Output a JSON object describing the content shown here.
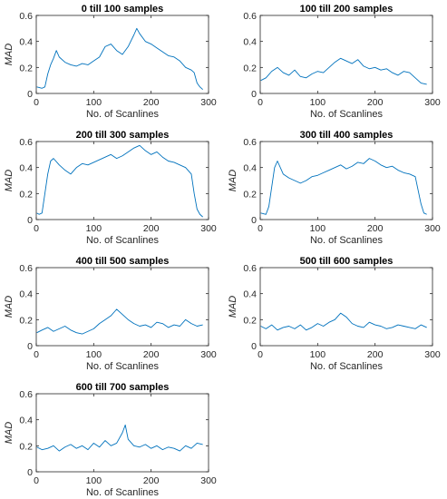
{
  "figure": {
    "background": "#ffffff",
    "line_color": "#0072BD"
  },
  "chart_data": [
    {
      "type": "line",
      "title": "0 till 100 samples",
      "xlabel": "No. of Scanlines",
      "ylabel": "MAD",
      "xlim": [
        0,
        300
      ],
      "ylim": [
        0,
        0.6
      ],
      "xticks": [
        0,
        100,
        200,
        300
      ],
      "yticks": [
        0,
        0.2,
        0.4,
        0.6
      ],
      "series": [
        {
          "x": [
            1,
            10,
            15,
            20,
            25,
            30,
            35,
            40,
            50,
            60,
            70,
            80,
            90,
            100,
            110,
            120,
            130,
            140,
            150,
            160,
            170,
            175,
            180,
            190,
            200,
            210,
            220,
            230,
            240,
            250,
            260,
            270,
            275,
            280,
            285,
            290
          ],
          "y": [
            0.05,
            0.04,
            0.05,
            0.15,
            0.22,
            0.27,
            0.33,
            0.28,
            0.24,
            0.22,
            0.21,
            0.23,
            0.22,
            0.25,
            0.28,
            0.36,
            0.38,
            0.33,
            0.3,
            0.36,
            0.45,
            0.5,
            0.46,
            0.4,
            0.38,
            0.35,
            0.32,
            0.29,
            0.28,
            0.25,
            0.2,
            0.18,
            0.16,
            0.08,
            0.05,
            0.03
          ]
        }
      ]
    },
    {
      "type": "line",
      "title": "100 till 200 samples",
      "xlabel": "No. of Scanlines",
      "ylabel": "",
      "xlim": [
        0,
        300
      ],
      "ylim": [
        0,
        0.6
      ],
      "xticks": [
        0,
        100,
        200,
        300
      ],
      "yticks": [
        0,
        0.2,
        0.4,
        0.6
      ],
      "series": [
        {
          "x": [
            1,
            10,
            20,
            30,
            40,
            50,
            60,
            70,
            80,
            90,
            100,
            110,
            120,
            130,
            140,
            150,
            160,
            170,
            180,
            190,
            200,
            210,
            220,
            230,
            240,
            250,
            260,
            270,
            280,
            290
          ],
          "y": [
            0.1,
            0.12,
            0.17,
            0.2,
            0.16,
            0.14,
            0.18,
            0.13,
            0.12,
            0.15,
            0.17,
            0.16,
            0.2,
            0.24,
            0.27,
            0.25,
            0.23,
            0.26,
            0.21,
            0.19,
            0.2,
            0.18,
            0.19,
            0.16,
            0.14,
            0.17,
            0.16,
            0.12,
            0.08,
            0.07
          ]
        }
      ]
    },
    {
      "type": "line",
      "title": "200 till 300 samples",
      "xlabel": "No. of Scanlines",
      "ylabel": "MAD",
      "xlim": [
        0,
        300
      ],
      "ylim": [
        0,
        0.6
      ],
      "xticks": [
        0,
        100,
        200,
        300
      ],
      "yticks": [
        0,
        0.2,
        0.4,
        0.6
      ],
      "series": [
        {
          "x": [
            1,
            5,
            10,
            15,
            20,
            25,
            30,
            40,
            50,
            60,
            70,
            80,
            90,
            100,
            110,
            120,
            130,
            140,
            150,
            160,
            170,
            180,
            190,
            200,
            210,
            220,
            230,
            240,
            250,
            260,
            270,
            275,
            280,
            285,
            290
          ],
          "y": [
            0.05,
            0.04,
            0.05,
            0.2,
            0.35,
            0.45,
            0.47,
            0.42,
            0.38,
            0.35,
            0.4,
            0.43,
            0.42,
            0.44,
            0.46,
            0.48,
            0.5,
            0.47,
            0.49,
            0.52,
            0.55,
            0.57,
            0.53,
            0.5,
            0.52,
            0.48,
            0.45,
            0.44,
            0.42,
            0.4,
            0.35,
            0.2,
            0.08,
            0.04,
            0.02
          ]
        }
      ]
    },
    {
      "type": "line",
      "title": "300 till 400 samples",
      "xlabel": "No. of Scanlines",
      "ylabel": "MAD",
      "xlim": [
        0,
        300
      ],
      "ylim": [
        0,
        0.6
      ],
      "xticks": [
        0,
        100,
        200,
        300
      ],
      "yticks": [
        0,
        0.2,
        0.4,
        0.6
      ],
      "series": [
        {
          "x": [
            1,
            10,
            15,
            20,
            25,
            30,
            40,
            50,
            60,
            70,
            80,
            90,
            100,
            110,
            120,
            130,
            140,
            150,
            160,
            170,
            180,
            190,
            200,
            210,
            220,
            230,
            240,
            250,
            260,
            270,
            280,
            285,
            290
          ],
          "y": [
            0.05,
            0.04,
            0.1,
            0.25,
            0.4,
            0.45,
            0.35,
            0.32,
            0.3,
            0.28,
            0.3,
            0.33,
            0.34,
            0.36,
            0.38,
            0.4,
            0.42,
            0.39,
            0.41,
            0.44,
            0.43,
            0.47,
            0.45,
            0.42,
            0.4,
            0.41,
            0.38,
            0.36,
            0.35,
            0.33,
            0.12,
            0.05,
            0.04
          ]
        }
      ]
    },
    {
      "type": "line",
      "title": "400 till 500 samples",
      "xlabel": "No. of Scanlines",
      "ylabel": "MAD",
      "xlim": [
        0,
        300
      ],
      "ylim": [
        0,
        0.6
      ],
      "xticks": [
        0,
        100,
        200,
        300
      ],
      "yticks": [
        0,
        0.2,
        0.4,
        0.6
      ],
      "series": [
        {
          "x": [
            1,
            10,
            20,
            30,
            40,
            50,
            60,
            70,
            80,
            90,
            100,
            110,
            120,
            130,
            140,
            150,
            160,
            170,
            180,
            190,
            200,
            210,
            220,
            230,
            240,
            250,
            260,
            270,
            280,
            290
          ],
          "y": [
            0.1,
            0.12,
            0.14,
            0.11,
            0.13,
            0.15,
            0.12,
            0.1,
            0.09,
            0.11,
            0.13,
            0.17,
            0.2,
            0.23,
            0.28,
            0.24,
            0.2,
            0.17,
            0.15,
            0.16,
            0.14,
            0.18,
            0.17,
            0.14,
            0.16,
            0.15,
            0.2,
            0.17,
            0.15,
            0.16
          ]
        }
      ]
    },
    {
      "type": "line",
      "title": "500 till 600 samples",
      "xlabel": "No. of Scanlines",
      "ylabel": "MAD",
      "xlim": [
        0,
        300
      ],
      "ylim": [
        0,
        0.6
      ],
      "xticks": [
        0,
        100,
        200,
        300
      ],
      "yticks": [
        0,
        0.2,
        0.4,
        0.6
      ],
      "series": [
        {
          "x": [
            1,
            10,
            20,
            30,
            40,
            50,
            60,
            70,
            80,
            90,
            100,
            110,
            120,
            130,
            140,
            150,
            160,
            170,
            180,
            190,
            200,
            210,
            220,
            230,
            240,
            250,
            260,
            270,
            280,
            290
          ],
          "y": [
            0.15,
            0.13,
            0.16,
            0.12,
            0.14,
            0.15,
            0.13,
            0.16,
            0.12,
            0.14,
            0.17,
            0.15,
            0.18,
            0.2,
            0.25,
            0.22,
            0.17,
            0.15,
            0.14,
            0.18,
            0.16,
            0.15,
            0.13,
            0.14,
            0.16,
            0.15,
            0.14,
            0.13,
            0.16,
            0.14
          ]
        }
      ]
    },
    {
      "type": "line",
      "title": "600 till 700 samples",
      "xlabel": "No. of Scanlines",
      "ylabel": "MAD",
      "xlim": [
        0,
        300
      ],
      "ylim": [
        0,
        0.6
      ],
      "xticks": [
        0,
        100,
        200,
        300
      ],
      "yticks": [
        0,
        0.2,
        0.4,
        0.6
      ],
      "series": [
        {
          "x": [
            1,
            10,
            20,
            30,
            40,
            50,
            60,
            70,
            80,
            90,
            100,
            110,
            120,
            130,
            140,
            150,
            155,
            160,
            170,
            180,
            190,
            200,
            210,
            220,
            230,
            240,
            250,
            260,
            270,
            280,
            290
          ],
          "y": [
            0.19,
            0.17,
            0.18,
            0.2,
            0.16,
            0.19,
            0.21,
            0.18,
            0.2,
            0.17,
            0.22,
            0.19,
            0.24,
            0.2,
            0.22,
            0.3,
            0.36,
            0.25,
            0.2,
            0.19,
            0.21,
            0.18,
            0.2,
            0.17,
            0.19,
            0.18,
            0.16,
            0.2,
            0.18,
            0.22,
            0.21
          ]
        }
      ]
    }
  ]
}
